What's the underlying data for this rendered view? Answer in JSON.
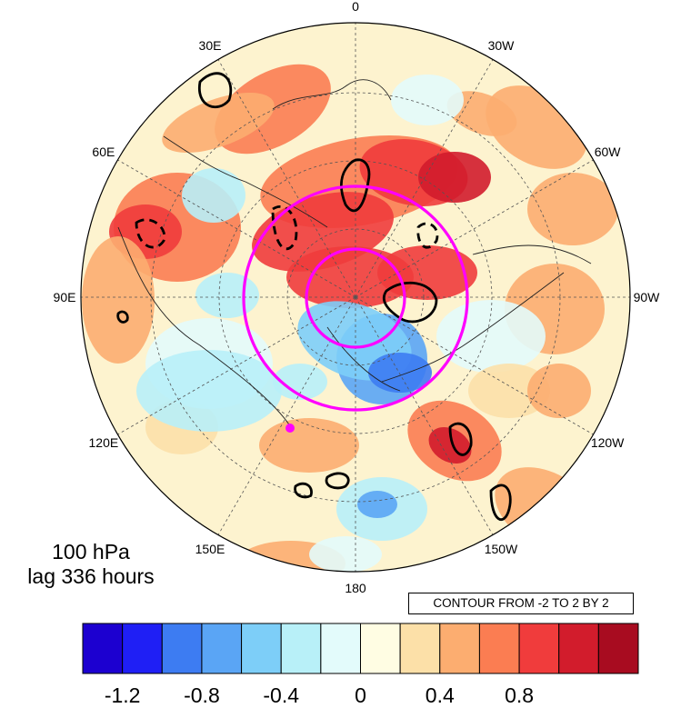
{
  "map": {
    "projection": "north-polar-stereographic",
    "longitude_labels": [
      {
        "text": "0",
        "lon": 0
      },
      {
        "text": "30W",
        "lon": -30
      },
      {
        "text": "60W",
        "lon": -60
      },
      {
        "text": "90W",
        "lon": -90
      },
      {
        "text": "120W",
        "lon": -120
      },
      {
        "text": "150W",
        "lon": -150
      },
      {
        "text": "180",
        "lon": 180
      },
      {
        "text": "150E",
        "lon": 150
      },
      {
        "text": "120E",
        "lon": 120
      },
      {
        "text": "90E",
        "lon": 90
      },
      {
        "text": "60E",
        "lon": 60
      },
      {
        "text": "30E",
        "lon": 30
      }
    ],
    "level_label": "100 hPa",
    "lag_label": "lag 336 hours",
    "contour_info": "CONTOUR FROM -2 TO 2 BY 2",
    "highlight_color": "#ff00ff"
  },
  "colorbar": {
    "colors": [
      "#1c00d0",
      "#1f1ff5",
      "#3d7cf2",
      "#5aa5f5",
      "#7dcef8",
      "#b8f0f8",
      "#e3fbfb",
      "#fffde3",
      "#fce0a8",
      "#fcad70",
      "#fb7d52",
      "#f03c3c",
      "#d21c2c",
      "#a80c20"
    ],
    "tick_labels": [
      "-1.2",
      "-0.8",
      "-0.4",
      "0",
      "0.4",
      "0.8"
    ],
    "tick_values": [
      -1.2,
      -0.8,
      -0.4,
      0,
      0.4,
      0.8
    ]
  }
}
